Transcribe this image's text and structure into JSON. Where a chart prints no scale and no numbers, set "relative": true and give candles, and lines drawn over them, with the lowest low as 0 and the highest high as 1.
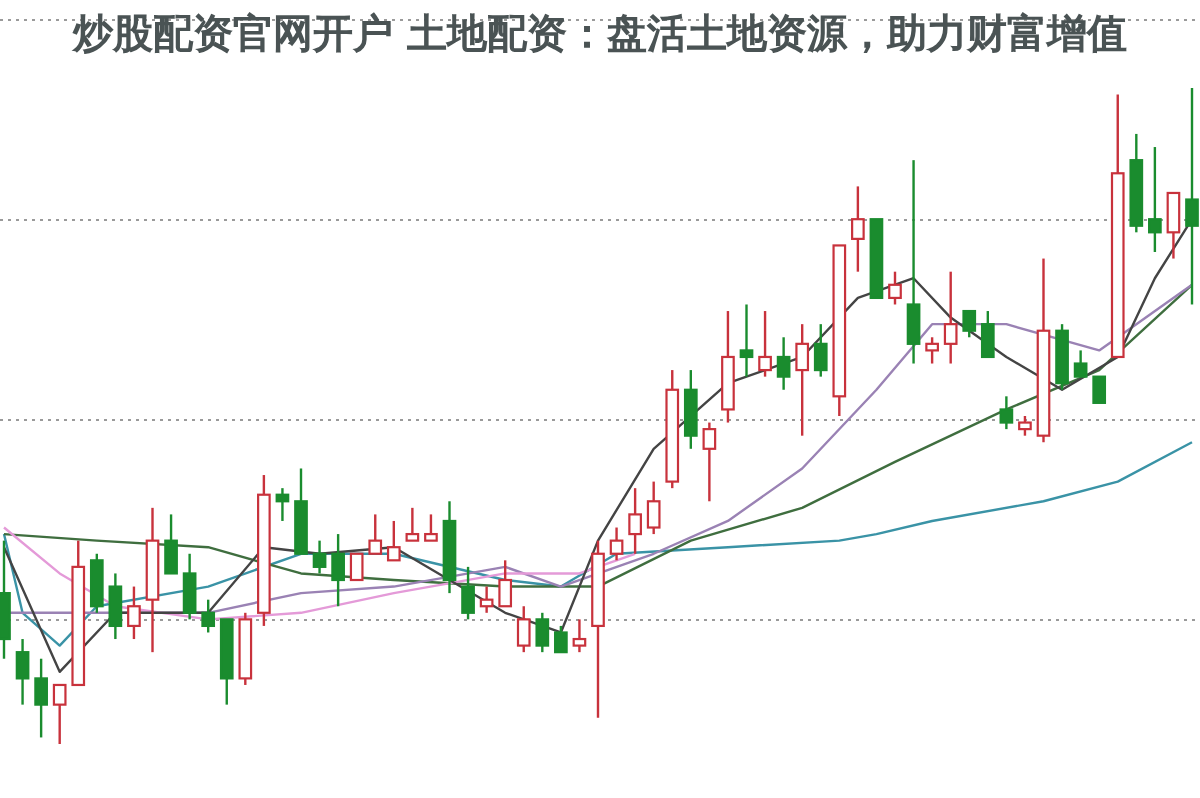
{
  "chart_data": {
    "type": "candlestick",
    "title": "炒股配资官网开户 土地配资：盘活土地资源，助力财富增值",
    "relative": true,
    "grid": "y",
    "categories": [
      null,
      null,
      null,
      null,
      null,
      null,
      null,
      null,
      null,
      null,
      null,
      null,
      null,
      null,
      null,
      null,
      null,
      null,
      null,
      null,
      null,
      null,
      null,
      null,
      null,
      null,
      null,
      null,
      null,
      null,
      null,
      null,
      null,
      null,
      null,
      null,
      null,
      null,
      null,
      null,
      null,
      null,
      null,
      null,
      null,
      null,
      null,
      null,
      null,
      null,
      null,
      null,
      null,
      null,
      null,
      null,
      null,
      null,
      null,
      null,
      null,
      null,
      null,
      null,
      null
    ],
    "ohlc": [
      [
        0.23,
        0.31,
        0.13,
        0.16
      ],
      [
        0.14,
        0.16,
        0.06,
        0.1
      ],
      [
        0.1,
        0.13,
        0.01,
        0.06
      ],
      [
        0.06,
        0.09,
        0,
        0.09
      ],
      [
        0.09,
        0.31,
        0.09,
        0.27
      ],
      [
        0.28,
        0.29,
        0.2,
        0.21
      ],
      [
        0.24,
        0.26,
        0.16,
        0.18
      ],
      [
        0.18,
        0.24,
        0.16,
        0.21
      ],
      [
        0.22,
        0.36,
        0.14,
        0.31
      ],
      [
        0.31,
        0.35,
        0.26,
        0.26
      ],
      [
        0.26,
        0.29,
        0.19,
        0.2
      ],
      [
        0.2,
        0.22,
        0.17,
        0.18
      ],
      [
        0.19,
        0.19,
        0.06,
        0.1
      ],
      [
        0.1,
        0.2,
        0.09,
        0.19
      ],
      [
        0.2,
        0.41,
        0.18,
        0.38
      ],
      [
        0.38,
        0.39,
        0.34,
        0.37
      ],
      [
        0.37,
        0.42,
        0.29,
        0.29
      ],
      [
        0.29,
        0.31,
        0.26,
        0.27
      ],
      [
        0.29,
        0.32,
        0.21,
        0.25
      ],
      [
        0.25,
        0.29,
        0.25,
        0.29
      ],
      [
        0.29,
        0.35,
        0.29,
        0.31
      ],
      [
        0.28,
        0.34,
        0.28,
        0.3
      ],
      [
        0.31,
        0.36,
        0.31,
        0.32
      ],
      [
        0.31,
        0.35,
        0.31,
        0.32
      ],
      [
        0.34,
        0.37,
        0.23,
        0.25
      ],
      [
        0.24,
        0.27,
        0.19,
        0.2
      ],
      [
        0.21,
        0.24,
        0.2,
        0.22
      ],
      [
        0.21,
        0.28,
        0.21,
        0.25
      ],
      [
        0.15,
        0.21,
        0.14,
        0.19
      ],
      [
        0.19,
        0.2,
        0.14,
        0.15
      ],
      [
        0.17,
        0.18,
        0.14,
        0.14
      ],
      [
        0.15,
        0.19,
        0.14,
        0.16
      ],
      [
        0.18,
        0.31,
        0.04,
        0.29
      ],
      [
        0.29,
        0.33,
        0.28,
        0.31
      ],
      [
        0.32,
        0.39,
        0.29,
        0.35
      ],
      [
        0.33,
        0.4,
        0.32,
        0.37
      ],
      [
        0.4,
        0.57,
        0.39,
        0.54
      ],
      [
        0.54,
        0.57,
        0.45,
        0.47
      ],
      [
        0.45,
        0.49,
        0.37,
        0.48
      ],
      [
        0.51,
        0.66,
        0.49,
        0.59
      ],
      [
        0.6,
        0.67,
        0.56,
        0.59
      ],
      [
        0.57,
        0.66,
        0.56,
        0.59
      ],
      [
        0.59,
        0.62,
        0.54,
        0.56
      ],
      [
        0.57,
        0.64,
        0.47,
        0.61
      ],
      [
        0.61,
        0.64,
        0.56,
        0.57
      ],
      [
        0.53,
        0.76,
        0.5,
        0.76
      ],
      [
        0.77,
        0.85,
        0.72,
        0.8
      ],
      [
        0.8,
        0.8,
        0.68,
        0.68
      ],
      [
        0.68,
        0.72,
        0.67,
        0.7
      ],
      [
        0.67,
        0.89,
        0.58,
        0.61
      ],
      [
        0.6,
        0.62,
        0.58,
        0.61
      ],
      [
        0.61,
        0.72,
        0.58,
        0.64
      ],
      [
        0.66,
        0.66,
        0.62,
        0.63
      ],
      [
        0.64,
        0.66,
        0.59,
        0.59
      ],
      [
        0.51,
        0.53,
        0.48,
        0.49
      ],
      [
        0.48,
        0.5,
        0.47,
        0.49
      ],
      [
        0.47,
        0.74,
        0.46,
        0.63
      ],
      [
        0.63,
        0.64,
        0.54,
        0.55
      ],
      [
        0.58,
        0.6,
        0.56,
        0.56
      ],
      [
        0.56,
        0.56,
        0.52,
        0.52
      ],
      [
        0.59,
        0.99,
        0.59,
        0.87
      ],
      [
        0.89,
        0.93,
        0.78,
        0.79
      ],
      [
        0.8,
        0.91,
        0.75,
        0.78
      ],
      [
        0.78,
        0.84,
        0.74,
        0.84
      ],
      [
        0.83,
        1,
        0.67,
        0.79
      ]
    ],
    "colors": [
      "#1a8c2e",
      "#1a8c2e",
      "#1a8c2e",
      "#c8323c",
      "#c8323c",
      "#1a8c2e",
      "#1a8c2e",
      "#c8323c",
      "#c8323c",
      "#1a8c2e",
      "#1a8c2e",
      "#1a8c2e",
      "#1a8c2e",
      "#c8323c",
      "#c8323c",
      "#1a8c2e",
      "#1a8c2e",
      "#1a8c2e",
      "#1a8c2e",
      "#c8323c",
      "#c8323c",
      "#c8323c",
      "#c8323c",
      "#c8323c",
      "#1a8c2e",
      "#1a8c2e",
      "#c8323c",
      "#c8323c",
      "#c8323c",
      "#1a8c2e",
      "#1a8c2e",
      "#c8323c",
      "#c8323c",
      "#c8323c",
      "#c8323c",
      "#c8323c",
      "#c8323c",
      "#1a8c2e",
      "#c8323c",
      "#c8323c",
      "#1a8c2e",
      "#c8323c",
      "#1a8c2e",
      "#c8323c",
      "#1a8c2e",
      "#c8323c",
      "#c8323c",
      "#1a8c2e",
      "#c8323c",
      "#1a8c2e",
      "#c8323c",
      "#c8323c",
      "#1a8c2e",
      "#1a8c2e",
      "#1a8c2e",
      "#c8323c",
      "#c8323c",
      "#1a8c2e",
      "#1a8c2e",
      "#1a8c2e",
      "#c8323c",
      "#1a8c2e",
      "#1a8c2e",
      "#c8323c",
      "#1a8c2e"
    ],
    "series": [
      {
        "type": "line",
        "color": "#3a93a6",
        "values": [
          0.32,
          0.2,
          null,
          0.15,
          null,
          0.21,
          null,
          null,
          null,
          null,
          null,
          0.24,
          null,
          null,
          null,
          null,
          0.29,
          null,
          null,
          null,
          null,
          0.29,
          null,
          null,
          null,
          null,
          null,
          0.25,
          null,
          null,
          0.24,
          null,
          null,
          0.29,
          null,
          null,
          null,
          null,
          null,
          0.3,
          null,
          null,
          null,
          null,
          null,
          0.31,
          null,
          0.32,
          null,
          null,
          0.34,
          null,
          null,
          null,
          null,
          null,
          0.37,
          null,
          null,
          null,
          0.4,
          null,
          null,
          null,
          0.46
        ]
      },
      {
        "type": "line",
        "color": "#3f6e3f",
        "values": [
          0.32,
          null,
          null,
          null,
          null,
          0.31,
          null,
          null,
          null,
          null,
          null,
          0.3,
          null,
          null,
          null,
          null,
          0.26,
          null,
          null,
          null,
          null,
          0.25,
          null,
          null,
          null,
          null,
          null,
          0.24,
          null,
          null,
          null,
          null,
          0.24,
          null,
          null,
          null,
          null,
          0.31,
          null,
          null,
          null,
          null,
          null,
          0.36,
          null,
          null,
          null,
          null,
          0.43,
          null,
          null,
          null,
          null,
          null,
          0.51,
          null,
          null,
          null,
          null,
          0.57,
          null,
          null,
          null,
          null,
          0.7
        ]
      },
      {
        "type": "line",
        "color": "#9a82b4",
        "values": [
          0.2,
          null,
          null,
          null,
          null,
          0.2,
          null,
          null,
          null,
          null,
          null,
          0.2,
          null,
          null,
          null,
          null,
          0.23,
          null,
          null,
          null,
          null,
          0.24,
          null,
          null,
          null,
          null,
          null,
          0.27,
          null,
          null,
          0.24,
          null,
          null,
          null,
          null,
          0.29,
          null,
          null,
          null,
          0.34,
          null,
          null,
          null,
          0.42,
          null,
          null,
          null,
          0.54,
          null,
          null,
          0.64,
          null,
          null,
          null,
          0.64,
          null,
          null,
          null,
          null,
          0.6,
          null,
          0.64,
          null,
          null,
          0.7
        ]
      },
      {
        "type": "line",
        "color": "#e49ad8",
        "values": [
          0.33,
          null,
          null,
          0.26,
          null,
          null,
          0.21,
          null,
          null,
          null,
          null,
          0.19,
          null,
          null,
          null,
          null,
          0.2,
          null,
          null,
          null,
          null,
          0.23,
          null,
          null,
          null,
          null,
          null,
          0.26,
          null,
          null,
          null,
          0.26,
          null,
          null,
          0.29,
          null,
          null,
          null,
          null,
          null,
          null,
          null,
          null,
          null,
          null,
          null,
          null,
          null,
          null,
          null,
          null,
          null,
          null,
          null,
          null,
          null,
          null,
          null,
          null,
          null,
          null,
          null,
          null,
          null,
          null
        ]
      },
      {
        "type": "line",
        "color": "#444444",
        "values": [
          0.3,
          null,
          null,
          0.11,
          null,
          null,
          0.2,
          null,
          null,
          null,
          null,
          0.2,
          null,
          null,
          0.3,
          null,
          null,
          0.29,
          null,
          null,
          null,
          0.3,
          null,
          null,
          null,
          null,
          null,
          0.2,
          null,
          null,
          0.17,
          null,
          0.31,
          null,
          null,
          0.45,
          null,
          null,
          null,
          0.55,
          null,
          null,
          null,
          0.59,
          null,
          null,
          0.68,
          null,
          null,
          0.71,
          null,
          0.65,
          null,
          null,
          0.59,
          null,
          null,
          0.54,
          null,
          null,
          0.59,
          null,
          0.71,
          null,
          0.8
        ]
      }
    ]
  }
}
